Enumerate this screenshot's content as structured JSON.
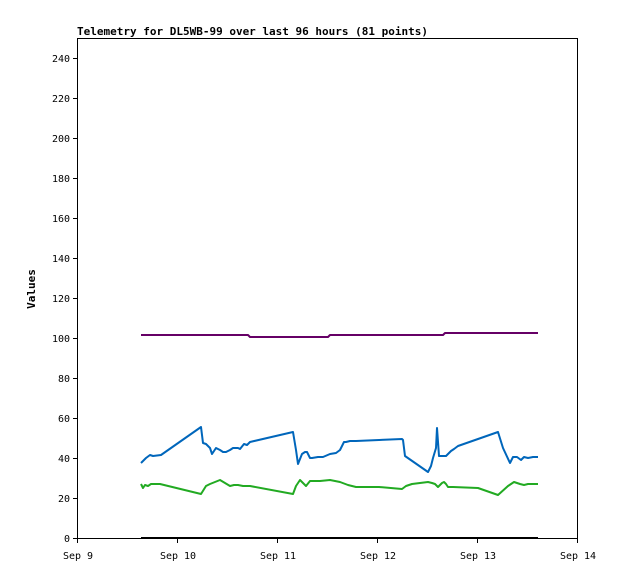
{
  "chart_data": {
    "type": "line",
    "title": "Telemetry for DL5WB-99 over last 96 hours (81 points)",
    "xlabel": "",
    "ylabel": "Values",
    "xlim": [
      "Sep 9",
      "Sep 14"
    ],
    "ylim": [
      0,
      250
    ],
    "x_ticks": [
      "Sep 9",
      "Sep 10",
      "Sep 11",
      "Sep 12",
      "Sep 13",
      "Sep 14"
    ],
    "y_ticks": [
      0,
      20,
      40,
      60,
      80,
      100,
      120,
      140,
      160,
      180,
      200,
      220,
      240
    ],
    "grid": false,
    "legend": "none",
    "series": [
      {
        "color": "#660066",
        "x": [
          9.63,
          10.7,
          10.72,
          11.5,
          11.52,
          12.65,
          12.67,
          13.6
        ],
        "y": [
          101.5,
          101.5,
          100.5,
          100.5,
          101.5,
          101.5,
          102.5,
          102.5
        ]
      },
      {
        "color": "#0066bb",
        "x": [
          9.63,
          9.68,
          9.72,
          9.75,
          9.83,
          10.23,
          10.25,
          10.28,
          10.32,
          10.34,
          10.38,
          10.42,
          10.45,
          10.48,
          10.52,
          10.55,
          10.6,
          10.62,
          10.66,
          10.69,
          10.72,
          11.15,
          11.18,
          11.2,
          11.24,
          11.27,
          11.29,
          11.32,
          11.34,
          11.4,
          11.45,
          11.52,
          11.58,
          11.62,
          11.64,
          11.66,
          11.68,
          11.72,
          11.78,
          12.01,
          12.24,
          12.25,
          12.27,
          12.5,
          12.53,
          12.55,
          12.58,
          12.59,
          12.61,
          12.64,
          12.68,
          12.7,
          12.73,
          12.76,
          12.8,
          13.2,
          13.25,
          13.32,
          13.35,
          13.39,
          13.43,
          13.46,
          13.5,
          13.55,
          13.6
        ],
        "y": [
          37.5,
          40,
          41.5,
          41,
          41.5,
          55.5,
          47.5,
          47,
          45,
          42,
          45,
          44,
          43,
          43,
          44,
          45,
          45,
          44.5,
          47,
          46.5,
          48,
          53,
          44,
          37,
          42,
          43,
          43,
          40,
          40,
          40.5,
          40.5,
          42,
          42.5,
          44,
          46,
          48,
          48,
          48.5,
          48.5,
          49,
          49.5,
          49,
          41,
          33,
          36,
          40,
          45,
          55,
          41,
          41,
          41,
          42,
          43.5,
          44.5,
          46,
          53,
          45,
          37.5,
          40.5,
          40.5,
          39,
          40.5,
          40,
          40.5,
          40.5
        ],
        "name": ""
      },
      {
        "color": "#22aa22",
        "x": [
          9.63,
          9.65,
          9.67,
          9.7,
          9.73,
          9.77,
          9.82,
          10.23,
          10.28,
          10.32,
          10.37,
          10.42,
          10.47,
          10.52,
          10.56,
          10.6,
          10.65,
          10.72,
          11.15,
          11.18,
          11.22,
          11.25,
          11.28,
          11.32,
          11.35,
          11.42,
          11.52,
          11.62,
          11.7,
          11.78,
          12.01,
          12.24,
          12.28,
          12.34,
          12.42,
          12.5,
          12.54,
          12.57,
          12.6,
          12.64,
          12.66,
          12.68,
          12.7,
          12.75,
          13.0,
          13.2,
          13.3,
          13.36,
          13.42,
          13.46,
          13.5,
          13.55,
          13.6
        ],
        "y": [
          27,
          25,
          26.5,
          26,
          27,
          27,
          27,
          22,
          26,
          27,
          28,
          29,
          27.5,
          26,
          26.5,
          26.5,
          26,
          26,
          22,
          26,
          29,
          27.5,
          26,
          28.5,
          28.5,
          28.5,
          29,
          28,
          26.5,
          25.5,
          25.5,
          24.5,
          26,
          27,
          27.5,
          28,
          27.5,
          27,
          25.5,
          27.5,
          28,
          27,
          25.5,
          25.5,
          25,
          21.5,
          26,
          28,
          27,
          26.5,
          27,
          27,
          27
        ],
        "name": ""
      },
      {
        "color": "#000000",
        "x": [
          9.63,
          13.6
        ],
        "y": [
          0,
          0
        ],
        "name": ""
      }
    ]
  }
}
